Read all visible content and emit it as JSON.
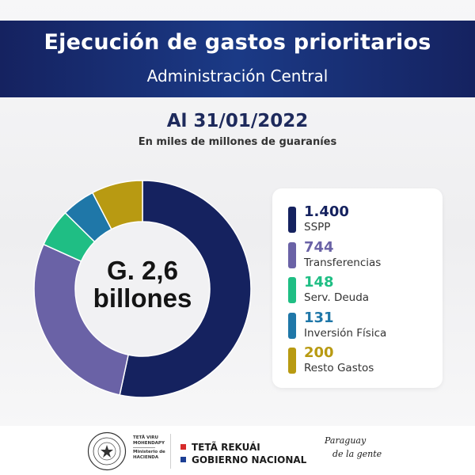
{
  "header": {
    "title": "Ejecución de gastos prioritarios",
    "subtitle": "Administración Central"
  },
  "date_label": "Al 31/01/2022",
  "unit_label": "En miles de millones de guaraníes",
  "center_label": {
    "line1": "G. 2,6",
    "line2": "billones"
  },
  "chart_data": {
    "type": "pie",
    "donut": true,
    "categories": [
      "SSPP",
      "Transferencias",
      "Serv. Deuda",
      "Inversión Física",
      "Resto Gastos"
    ],
    "value_labels": [
      "1.400",
      "744",
      "148",
      "131",
      "200"
    ],
    "values": [
      1400,
      744,
      148,
      131,
      200
    ],
    "colors": [
      "#15225f",
      "#6a62a6",
      "#1fbe84",
      "#1f77a8",
      "#b89a12"
    ],
    "total_label": "G. 2,6 billones",
    "legend_position": "right",
    "start_angle_deg": 0,
    "direction": "clockwise"
  },
  "footer": {
    "ministry_lines": [
      "TETÃ VIRU",
      "MOHENDAPY",
      "Ministerio de",
      "HACIENDA"
    ],
    "gov_line1": "TETÃ REKUÁI",
    "gov_line2": "GOBIERNO NACIONAL",
    "slogan_line1": "Paraguay",
    "slogan_line2": "de la gente"
  }
}
